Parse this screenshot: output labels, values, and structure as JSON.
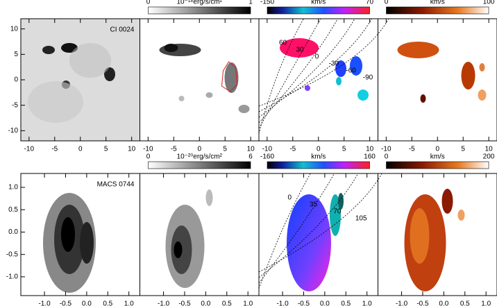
{
  "chart_data": [
    {
      "type": "heatmap",
      "title": "CI 0024",
      "colormap": "gray",
      "xlim": [
        -11.6,
        11.6
      ],
      "xticks": [
        -10,
        -5,
        0,
        5,
        10
      ],
      "ylim": [
        -12,
        12
      ],
      "yticks": [
        10,
        5,
        0,
        -5,
        -10
      ]
    },
    {
      "type": "heatmap",
      "colormap": "gray",
      "colorbar": {
        "min": 0,
        "max": 1,
        "label": "10⁻¹⁸erg/s/cm²"
      },
      "xlim": [
        -11.6,
        11.6
      ],
      "xticks": [
        -10,
        -5,
        0,
        5,
        10
      ]
    },
    {
      "type": "heatmap",
      "colormap": "rainbow",
      "colorbar": {
        "min": -150,
        "max": 70,
        "label": "km/s"
      },
      "xlim": [
        -11.6,
        11.6
      ],
      "xticks": [
        -10,
        -5,
        0,
        5,
        10
      ],
      "contour_levels": [
        60,
        30,
        0,
        -30,
        -60,
        -90
      ]
    },
    {
      "type": "heatmap",
      "colormap": "heat",
      "colorbar": {
        "min": 0,
        "max": 100,
        "label": "km/s"
      },
      "xlim": [
        -11.6,
        11.6
      ],
      "xticks": [
        -10,
        -5,
        0,
        5,
        10
      ]
    },
    {
      "type": "heatmap",
      "title": "MACS 0744",
      "colormap": "gray",
      "xlim": [
        -1.56,
        1.26
      ],
      "xticks": [
        {
          "value": -1,
          "label": "-1.0"
        },
        {
          "value": -0.5,
          "label": "-0.5"
        },
        {
          "value": 0,
          "label": "0.0"
        },
        {
          "value": 0.5,
          "label": "0.5"
        },
        {
          "value": 1,
          "label": "1.0"
        }
      ],
      "ylim": [
        -1.42,
        1.31
      ],
      "yticks": [
        {
          "value": 1,
          "label": "1.0"
        },
        0.5,
        {
          "value": 0,
          "label": "0.0"
        },
        -0.5,
        {
          "value": -1,
          "label": "-1.0"
        }
      ]
    },
    {
      "type": "heatmap",
      "colormap": "gray",
      "colorbar": {
        "min": 0,
        "max": 6,
        "label": "10⁻²⁰erg/s/cm²"
      },
      "xlim": [
        -1.56,
        1.26
      ],
      "xticks": [
        {
          "value": -1,
          "label": "-1.0"
        },
        {
          "value": -0.5,
          "label": "-0.5"
        },
        {
          "value": 0,
          "label": "0.0"
        },
        {
          "value": 0.5,
          "label": "0.5"
        },
        {
          "value": 1,
          "label": "1.0"
        }
      ]
    },
    {
      "type": "heatmap",
      "colormap": "rainbow",
      "colorbar": {
        "min": -160,
        "max": 160,
        "label": "km/s"
      },
      "xlim": [
        -1.56,
        1.26
      ],
      "xticks": [
        {
          "value": -1,
          "label": "-1.0"
        },
        {
          "value": -0.5,
          "label": "-0.5"
        },
        {
          "value": 0,
          "label": "0.0"
        },
        {
          "value": 0.5,
          "label": "0.5"
        },
        {
          "value": 1,
          "label": "1.0"
        }
      ],
      "contour_levels": [
        0,
        35,
        70,
        105
      ]
    },
    {
      "type": "heatmap",
      "colormap": "heat",
      "colorbar": {
        "min": 0,
        "max": 200,
        "label": "km/s"
      },
      "xlim": [
        -1.56,
        1.26
      ],
      "xticks": [
        {
          "value": -1,
          "label": "-1.0"
        },
        {
          "value": -0.5,
          "label": "-0.5"
        },
        {
          "value": 0,
          "label": "0.0"
        },
        {
          "value": 0.5,
          "label": "0.5"
        },
        {
          "value": 1,
          "label": "1.0"
        }
      ]
    }
  ]
}
